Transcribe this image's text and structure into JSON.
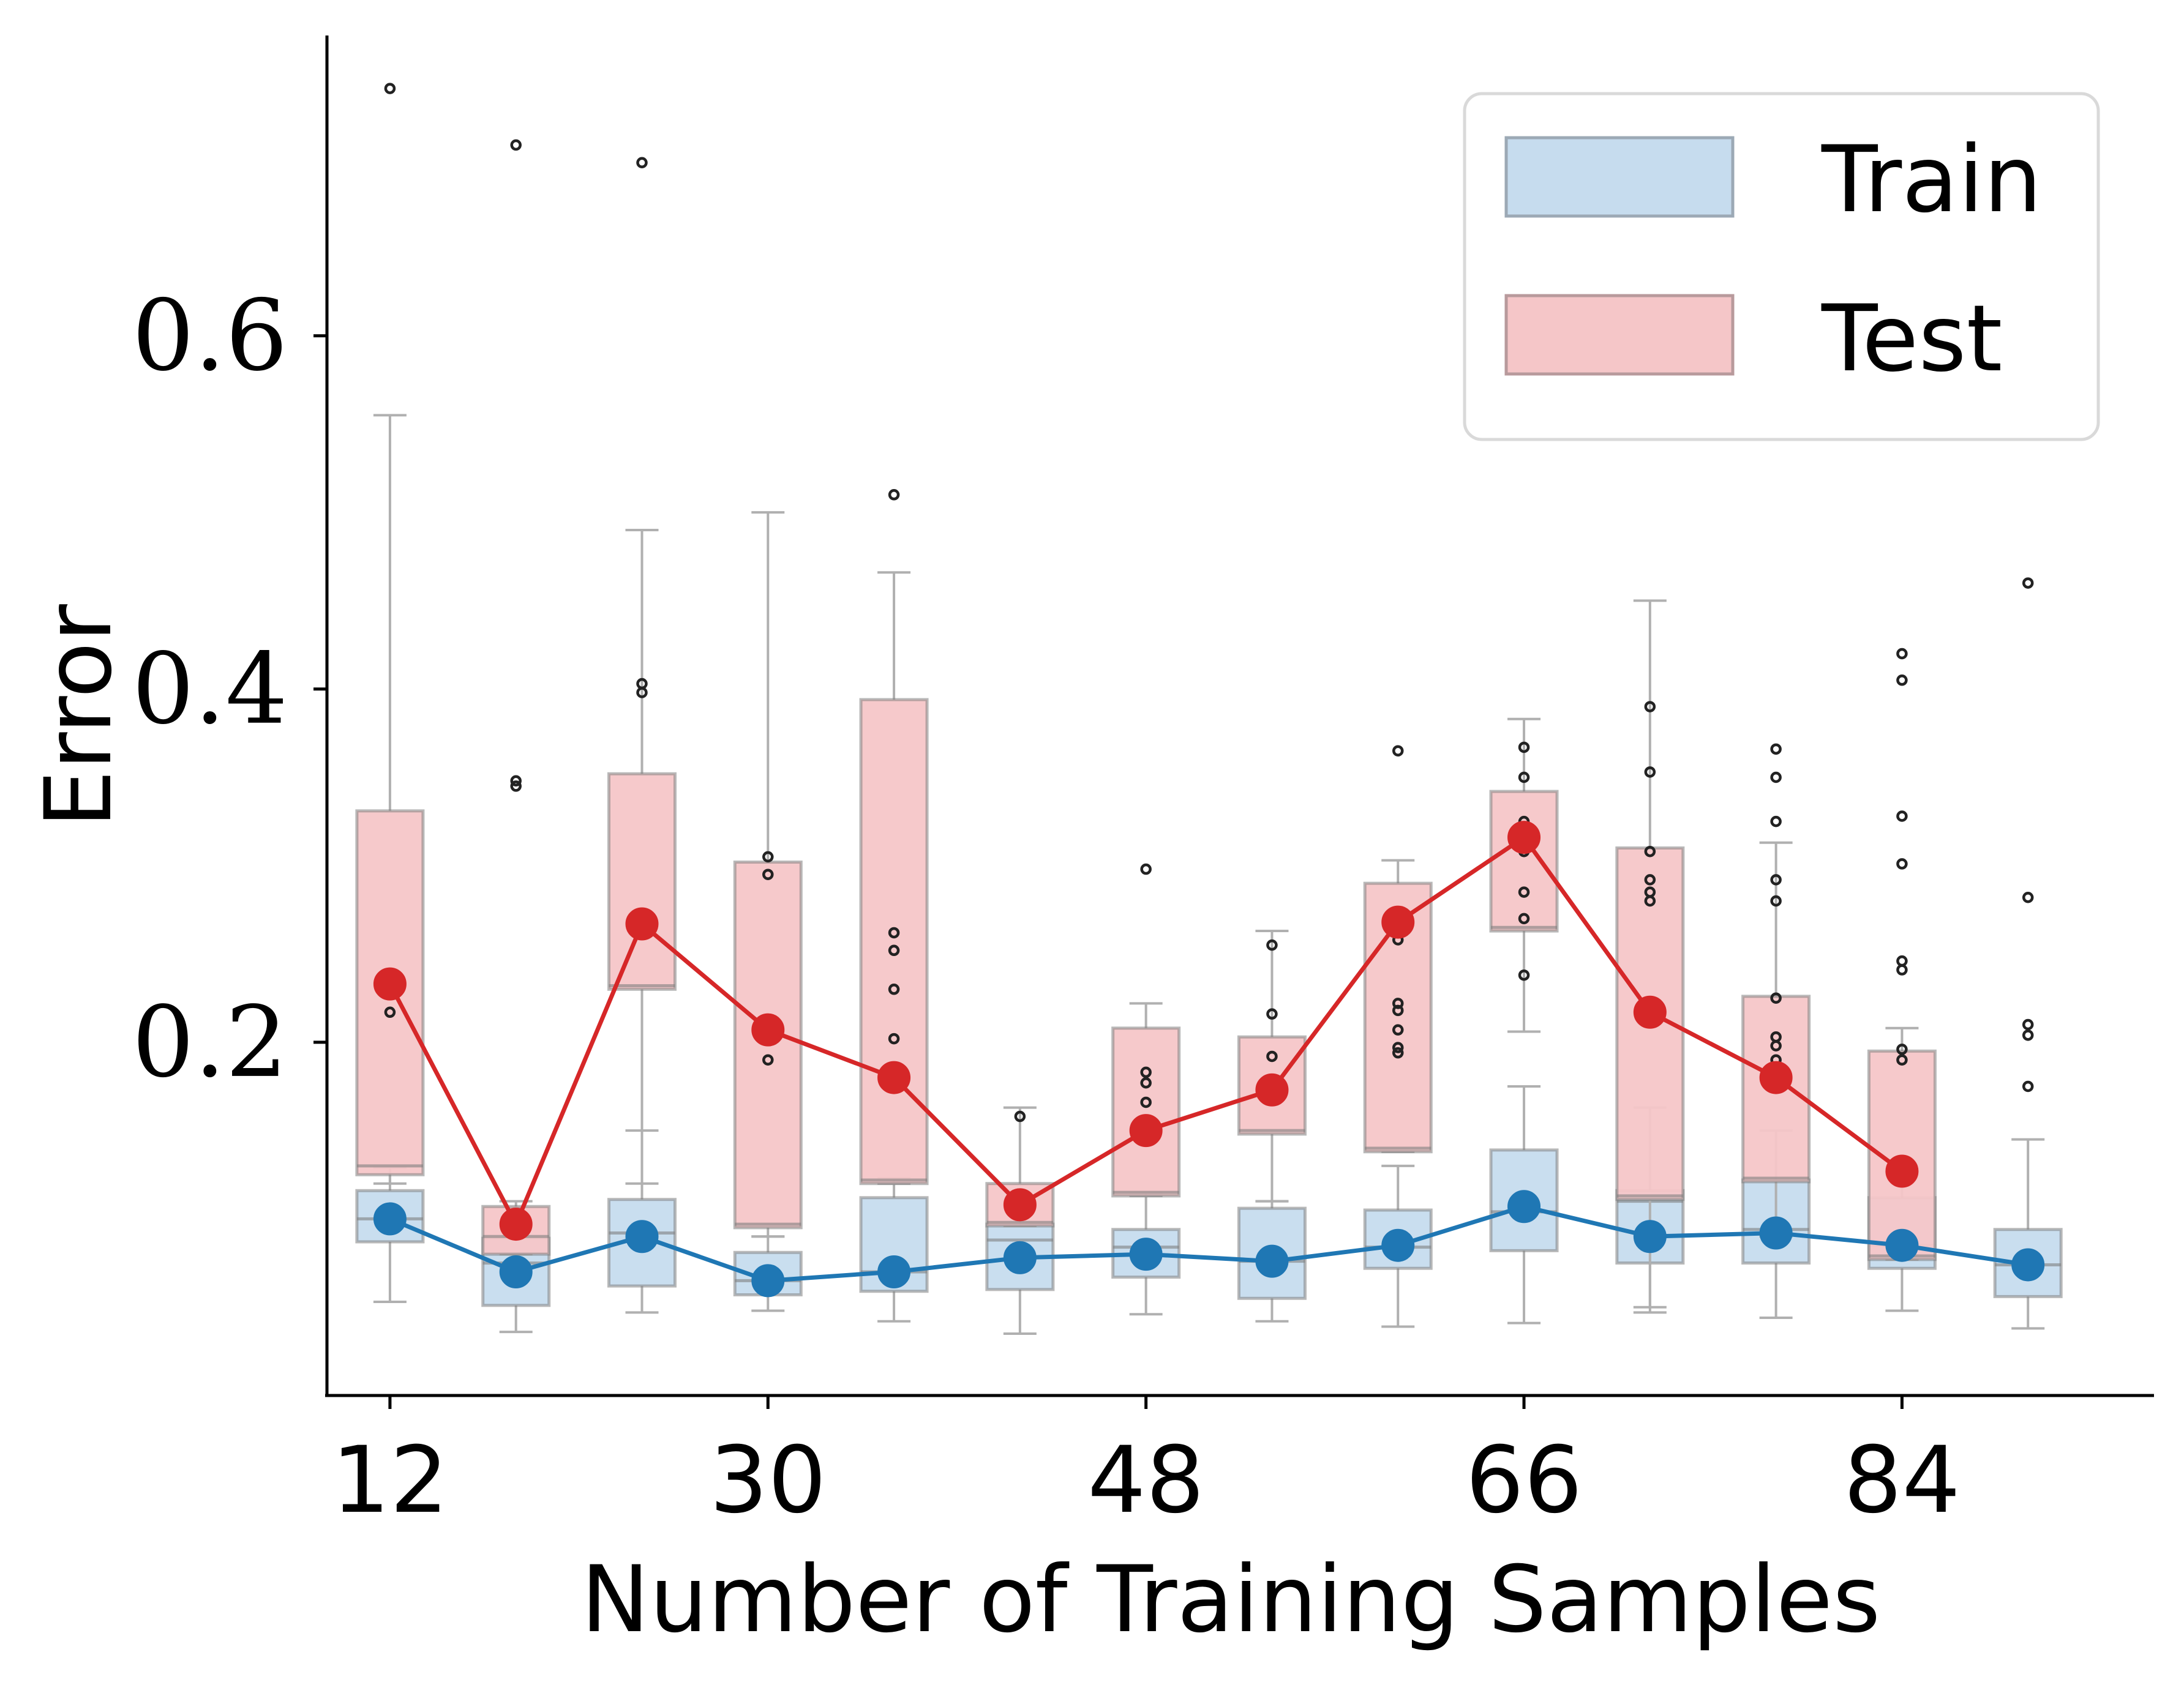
{
  "chart_data": {
    "type": "box",
    "xlabel": "Number of Training Samples",
    "ylabel": "Error",
    "x_ticks": [
      12,
      30,
      48,
      66,
      84
    ],
    "y_ticks": [
      0.2,
      0.4,
      0.6
    ],
    "y_tick_labels": [
      "0.2",
      "0.4",
      "0.6"
    ],
    "x_tick_labels": [
      "12",
      "30",
      "48",
      "66",
      "84"
    ],
    "xlim": [
      9,
      96
    ],
    "ylim": [
      0.0,
      0.77
    ],
    "grid": false,
    "legend_position": "top-right",
    "legend": [
      {
        "label": "Train",
        "color": "#c6dcee"
      },
      {
        "label": "Test",
        "color": "#f5c6c8"
      }
    ],
    "colors": {
      "train_line": "#1f77b4",
      "test_line": "#d62728",
      "train_box": "#c6dcee",
      "test_box": "#f5c6c8",
      "box_edge": "#7f7f7f",
      "whisker": "#b0b0b0",
      "outlier": "#222222"
    },
    "x": [
      12,
      18,
      24,
      30,
      36,
      42,
      48,
      54,
      60,
      66,
      72,
      78,
      84,
      90
    ],
    "series": [
      {
        "name": "Train",
        "mean": [
          0.1,
          0.07,
          0.09,
          0.065,
          0.07,
          0.078,
          0.08,
          0.076,
          0.085,
          0.107,
          0.09,
          0.092,
          0.085,
          0.074
        ],
        "boxes": [
          {
            "q1": 0.087,
            "med": 0.1,
            "q3": 0.116,
            "wlo": 0.053,
            "whi": 0.129
          },
          {
            "q1": 0.051,
            "med": 0.075,
            "q3": 0.089,
            "wlo": 0.036,
            "whi": 0.098
          },
          {
            "q1": 0.062,
            "med": 0.092,
            "q3": 0.111,
            "wlo": 0.047,
            "whi": 0.15
          },
          {
            "q1": 0.057,
            "med": 0.065,
            "q3": 0.081,
            "wlo": 0.048,
            "whi": 0.09
          },
          {
            "q1": 0.059,
            "med": 0.07,
            "q3": 0.112,
            "wlo": 0.042,
            "whi": 0.123
          },
          {
            "q1": 0.06,
            "med": 0.088,
            "q3": 0.097,
            "wlo": 0.035,
            "whi": 0.11
          },
          {
            "q1": 0.067,
            "med": 0.084,
            "q3": 0.094,
            "wlo": 0.046,
            "whi": 0.115
          },
          {
            "q1": 0.055,
            "med": 0.076,
            "q3": 0.106,
            "wlo": 0.042,
            "whi": 0.11
          },
          {
            "q1": 0.072,
            "med": 0.084,
            "q3": 0.105,
            "wlo": 0.039,
            "whi": 0.13
          },
          {
            "q1": 0.082,
            "med": 0.104,
            "q3": 0.139,
            "wlo": 0.041,
            "whi": 0.175
          },
          {
            "q1": 0.075,
            "med": 0.11,
            "q3": 0.116,
            "wlo": 0.047,
            "whi": 0.163
          },
          {
            "q1": 0.075,
            "med": 0.094,
            "q3": 0.122,
            "wlo": 0.044,
            "whi": 0.15
          },
          {
            "q1": 0.072,
            "med": 0.085,
            "q3": 0.112,
            "wlo": 0.048,
            "whi": 0.125
          },
          {
            "q1": 0.056,
            "med": 0.074,
            "q3": 0.094,
            "wlo": 0.038,
            "whi": 0.145
          }
        ],
        "outliers": [
          [],
          [],
          [],
          [],
          [],
          [],
          [],
          [],
          [],
          [],
          [],
          [],
          [],
          [
            0.46,
            0.282,
            0.21,
            0.204,
            0.175
          ]
        ]
      },
      {
        "name": "Test",
        "mean": [
          0.233,
          0.097,
          0.267,
          0.207,
          0.18,
          0.108,
          0.15,
          0.173,
          0.268,
          0.316,
          0.217,
          0.18,
          0.127,
          null
        ],
        "boxes": [
          {
            "q1": 0.125,
            "med": 0.13,
            "q3": 0.331,
            "wlo": 0.12,
            "whi": 0.555
          },
          {
            "q1": 0.08,
            "med": 0.09,
            "q3": 0.107,
            "wlo": 0.08,
            "whi": 0.11
          },
          {
            "q1": 0.23,
            "med": 0.232,
            "q3": 0.352,
            "wlo": 0.12,
            "whi": 0.49
          },
          {
            "q1": 0.095,
            "med": 0.097,
            "q3": 0.302,
            "wlo": 0.09,
            "whi": 0.5
          },
          {
            "q1": 0.12,
            "med": 0.122,
            "q3": 0.394,
            "wlo": 0.12,
            "whi": 0.466
          },
          {
            "q1": 0.096,
            "med": 0.098,
            "q3": 0.12,
            "wlo": 0.096,
            "whi": 0.163
          },
          {
            "q1": 0.113,
            "med": 0.115,
            "q3": 0.208,
            "wlo": 0.113,
            "whi": 0.222
          },
          {
            "q1": 0.148,
            "med": 0.15,
            "q3": 0.203,
            "wlo": 0.11,
            "whi": 0.263
          },
          {
            "q1": 0.138,
            "med": 0.14,
            "q3": 0.29,
            "wlo": 0.138,
            "whi": 0.303
          },
          {
            "q1": 0.263,
            "med": 0.265,
            "q3": 0.342,
            "wlo": 0.206,
            "whi": 0.383
          },
          {
            "q1": 0.111,
            "med": 0.113,
            "q3": 0.31,
            "wlo": 0.05,
            "whi": 0.45
          },
          {
            "q1": 0.121,
            "med": 0.123,
            "q3": 0.226,
            "wlo": 0.09,
            "whi": 0.313
          },
          {
            "q1": 0.077,
            "med": 0.079,
            "q3": 0.195,
            "wlo": 0.077,
            "whi": 0.208
          },
          null
        ],
        "outliers": [
          [
            0.74,
            0.217
          ],
          [
            0.708,
            0.348,
            0.345
          ],
          [
            0.698,
            0.403,
            0.398
          ],
          [
            0.305,
            0.295,
            0.19
          ],
          [
            0.51,
            0.262,
            0.252,
            0.23,
            0.202
          ],
          [
            0.158
          ],
          [
            0.298,
            0.183,
            0.177,
            0.166
          ],
          [
            0.255,
            0.216,
            0.192
          ],
          [
            0.365,
            0.258,
            0.222,
            0.218,
            0.207,
            0.197,
            0.194
          ],
          [
            0.367,
            0.35,
            0.325,
            0.319,
            0.308,
            0.285,
            0.27,
            0.238
          ],
          [
            0.39,
            0.353,
            0.308,
            0.292,
            0.285,
            0.28
          ],
          [
            0.366,
            0.35,
            0.325,
            0.28,
            0.292,
            0.225,
            0.203,
            0.198,
            0.19,
            0.183
          ],
          [
            0.42,
            0.405,
            0.328,
            0.301,
            0.246,
            0.241,
            0.196,
            0.19
          ],
          null
        ]
      }
    ]
  }
}
